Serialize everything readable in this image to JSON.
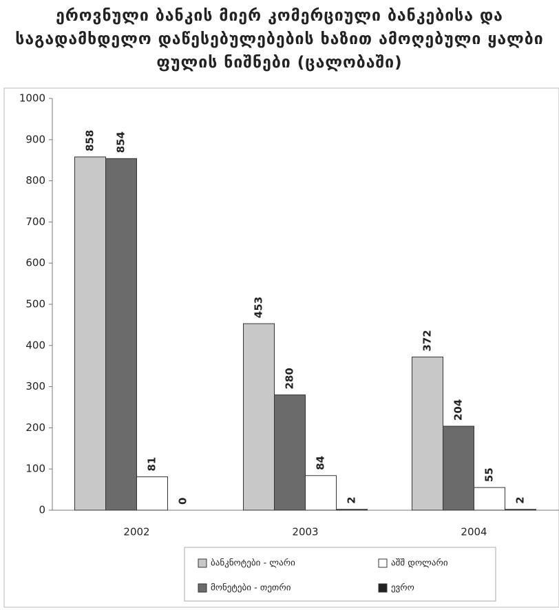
{
  "chart_data": {
    "type": "bar",
    "title": "ეროვნული ბანკის მიერ კომერციული ბანკებისა და საგადამხდელო დაწესებულებების ხაზით ამოღებული ყალბი ფულის ნიშნები (ცალობაში)",
    "categories": [
      "2002",
      "2003",
      "2004"
    ],
    "series": [
      {
        "name": "ბანკნოტები - ლარი",
        "color": "#c8c8c8",
        "values": [
          858,
          453,
          372
        ]
      },
      {
        "name": "მონეტები - თეთრი",
        "color": "#6b6b6b",
        "values": [
          854,
          280,
          204
        ]
      },
      {
        "name": "აშშ დოლარი",
        "color": "#ffffff",
        "values": [
          81,
          84,
          55
        ]
      },
      {
        "name": "ევრო",
        "color": "#222222",
        "values": [
          0,
          2,
          2
        ]
      }
    ],
    "ylim": [
      0,
      1000
    ],
    "yticks": [
      0,
      100,
      200,
      300,
      400,
      500,
      600,
      700,
      800,
      900,
      1000
    ],
    "grid": false,
    "legend": "bottom",
    "data_labels": true
  }
}
